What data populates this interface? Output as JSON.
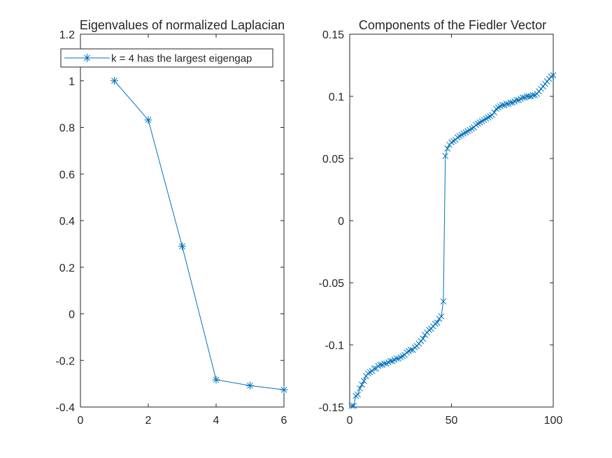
{
  "chart_data": [
    {
      "type": "line",
      "title": "Eigenvalues of normalized Laplacian",
      "xlim": [
        0,
        6
      ],
      "ylim": [
        -0.4,
        1.2
      ],
      "xticks": [
        "0",
        "2",
        "4",
        "6"
      ],
      "yticks": [
        "-0.4",
        "-0.2",
        "0",
        "0.2",
        "0.4",
        "0.6",
        "0.8",
        "1",
        "1.2"
      ],
      "marker": "asterisk",
      "legend": {
        "location": "top",
        "entries": [
          "k = 4 has the largest eigengap"
        ]
      },
      "series": [
        {
          "name": "k = 4 has the largest eigengap",
          "x": [
            1,
            2,
            3,
            4,
            5,
            6
          ],
          "y": [
            1.0,
            0.832,
            0.29,
            -0.283,
            -0.308,
            -0.326
          ]
        }
      ]
    },
    {
      "type": "line",
      "title": "Components of the Fiedler Vector",
      "xlim": [
        0,
        100
      ],
      "ylim": [
        -0.15,
        0.15
      ],
      "xticks": [
        "0",
        "50",
        "100"
      ],
      "yticks": [
        "-0.15",
        "-0.1",
        "-0.05",
        "0",
        "0.05",
        "0.1",
        "0.15"
      ],
      "marker": "x",
      "series": [
        {
          "x": [
            1,
            2,
            3,
            4,
            5,
            6,
            7,
            8,
            9,
            10,
            11,
            12,
            13,
            14,
            15,
            16,
            17,
            18,
            19,
            20,
            21,
            22,
            23,
            24,
            25,
            26,
            27,
            28,
            29,
            30,
            31,
            32,
            33,
            34,
            35,
            36,
            37,
            38,
            39,
            40,
            41,
            42,
            43,
            44,
            45,
            46,
            47,
            48,
            49,
            50,
            51,
            52,
            53,
            54,
            55,
            56,
            57,
            58,
            59,
            60,
            61,
            62,
            63,
            64,
            65,
            66,
            67,
            68,
            69,
            70,
            71,
            72,
            73,
            74,
            75,
            76,
            77,
            78,
            79,
            80,
            81,
            82,
            83,
            84,
            85,
            86,
            87,
            88,
            89,
            90,
            91,
            92,
            93,
            94,
            95,
            96,
            97,
            98,
            99,
            100
          ],
          "y": [
            -0.149,
            -0.149,
            -0.141,
            -0.14,
            -0.135,
            -0.132,
            -0.129,
            -0.125,
            -0.123,
            -0.122,
            -0.121,
            -0.119,
            -0.119,
            -0.117,
            -0.116,
            -0.116,
            -0.115,
            -0.115,
            -0.114,
            -0.113,
            -0.113,
            -0.112,
            -0.111,
            -0.111,
            -0.11,
            -0.109,
            -0.108,
            -0.106,
            -0.105,
            -0.104,
            -0.104,
            -0.102,
            -0.101,
            -0.099,
            -0.097,
            -0.095,
            -0.092,
            -0.09,
            -0.088,
            -0.087,
            -0.085,
            -0.083,
            -0.082,
            -0.079,
            -0.077,
            -0.065,
            0.052,
            0.058,
            0.061,
            0.063,
            0.064,
            0.065,
            0.067,
            0.068,
            0.069,
            0.07,
            0.071,
            0.072,
            0.073,
            0.074,
            0.075,
            0.077,
            0.078,
            0.079,
            0.08,
            0.081,
            0.082,
            0.083,
            0.084,
            0.085,
            0.087,
            0.09,
            0.091,
            0.092,
            0.093,
            0.093,
            0.094,
            0.094,
            0.095,
            0.095,
            0.096,
            0.097,
            0.097,
            0.098,
            0.099,
            0.099,
            0.1,
            0.1,
            0.1,
            0.101,
            0.101,
            0.102,
            0.104,
            0.106,
            0.108,
            0.11,
            0.112,
            0.114,
            0.116,
            0.117
          ]
        }
      ]
    }
  ]
}
